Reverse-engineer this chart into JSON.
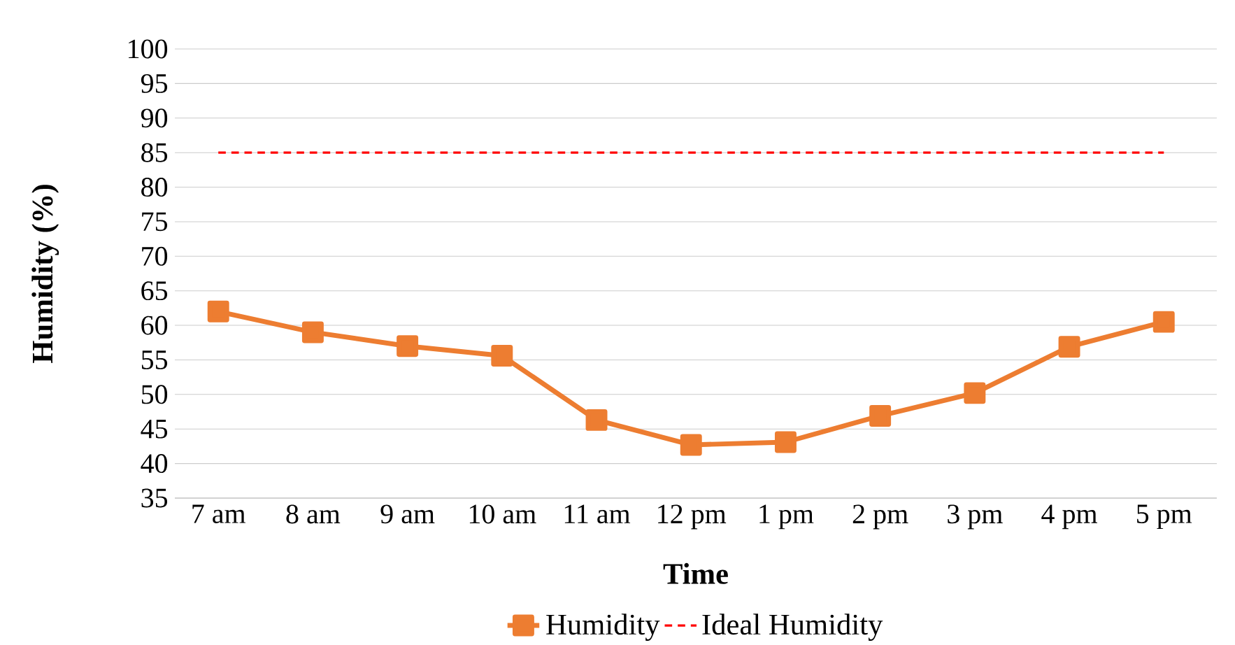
{
  "chart_data": {
    "type": "line",
    "xlabel": "Time",
    "ylabel": "Humidity (%)",
    "categories": [
      "7 am",
      "8 am",
      "9 am",
      "10 am",
      "11 am",
      "12 pm",
      "1 pm",
      "2 pm",
      "3 pm",
      "4 pm",
      "5 pm"
    ],
    "series": [
      {
        "name": "Humidity",
        "color": "#ed7d31",
        "values": [
          62,
          59,
          57,
          55.6,
          46.3,
          42.7,
          43.1,
          46.9,
          50.2,
          56.9,
          60.5
        ],
        "marker": "square",
        "line_style": "solid"
      },
      {
        "name": "Ideal Humidity",
        "color": "#ff0000",
        "values": [
          85,
          85,
          85,
          85,
          85,
          85,
          85,
          85,
          85,
          85,
          85
        ],
        "marker": "none",
        "line_style": "dashed"
      }
    ],
    "ylim": [
      35,
      100
    ],
    "yticks": [
      35,
      40,
      45,
      50,
      55,
      60,
      65,
      70,
      75,
      80,
      85,
      90,
      95,
      100
    ],
    "grid": "y",
    "legend": "bottom"
  }
}
